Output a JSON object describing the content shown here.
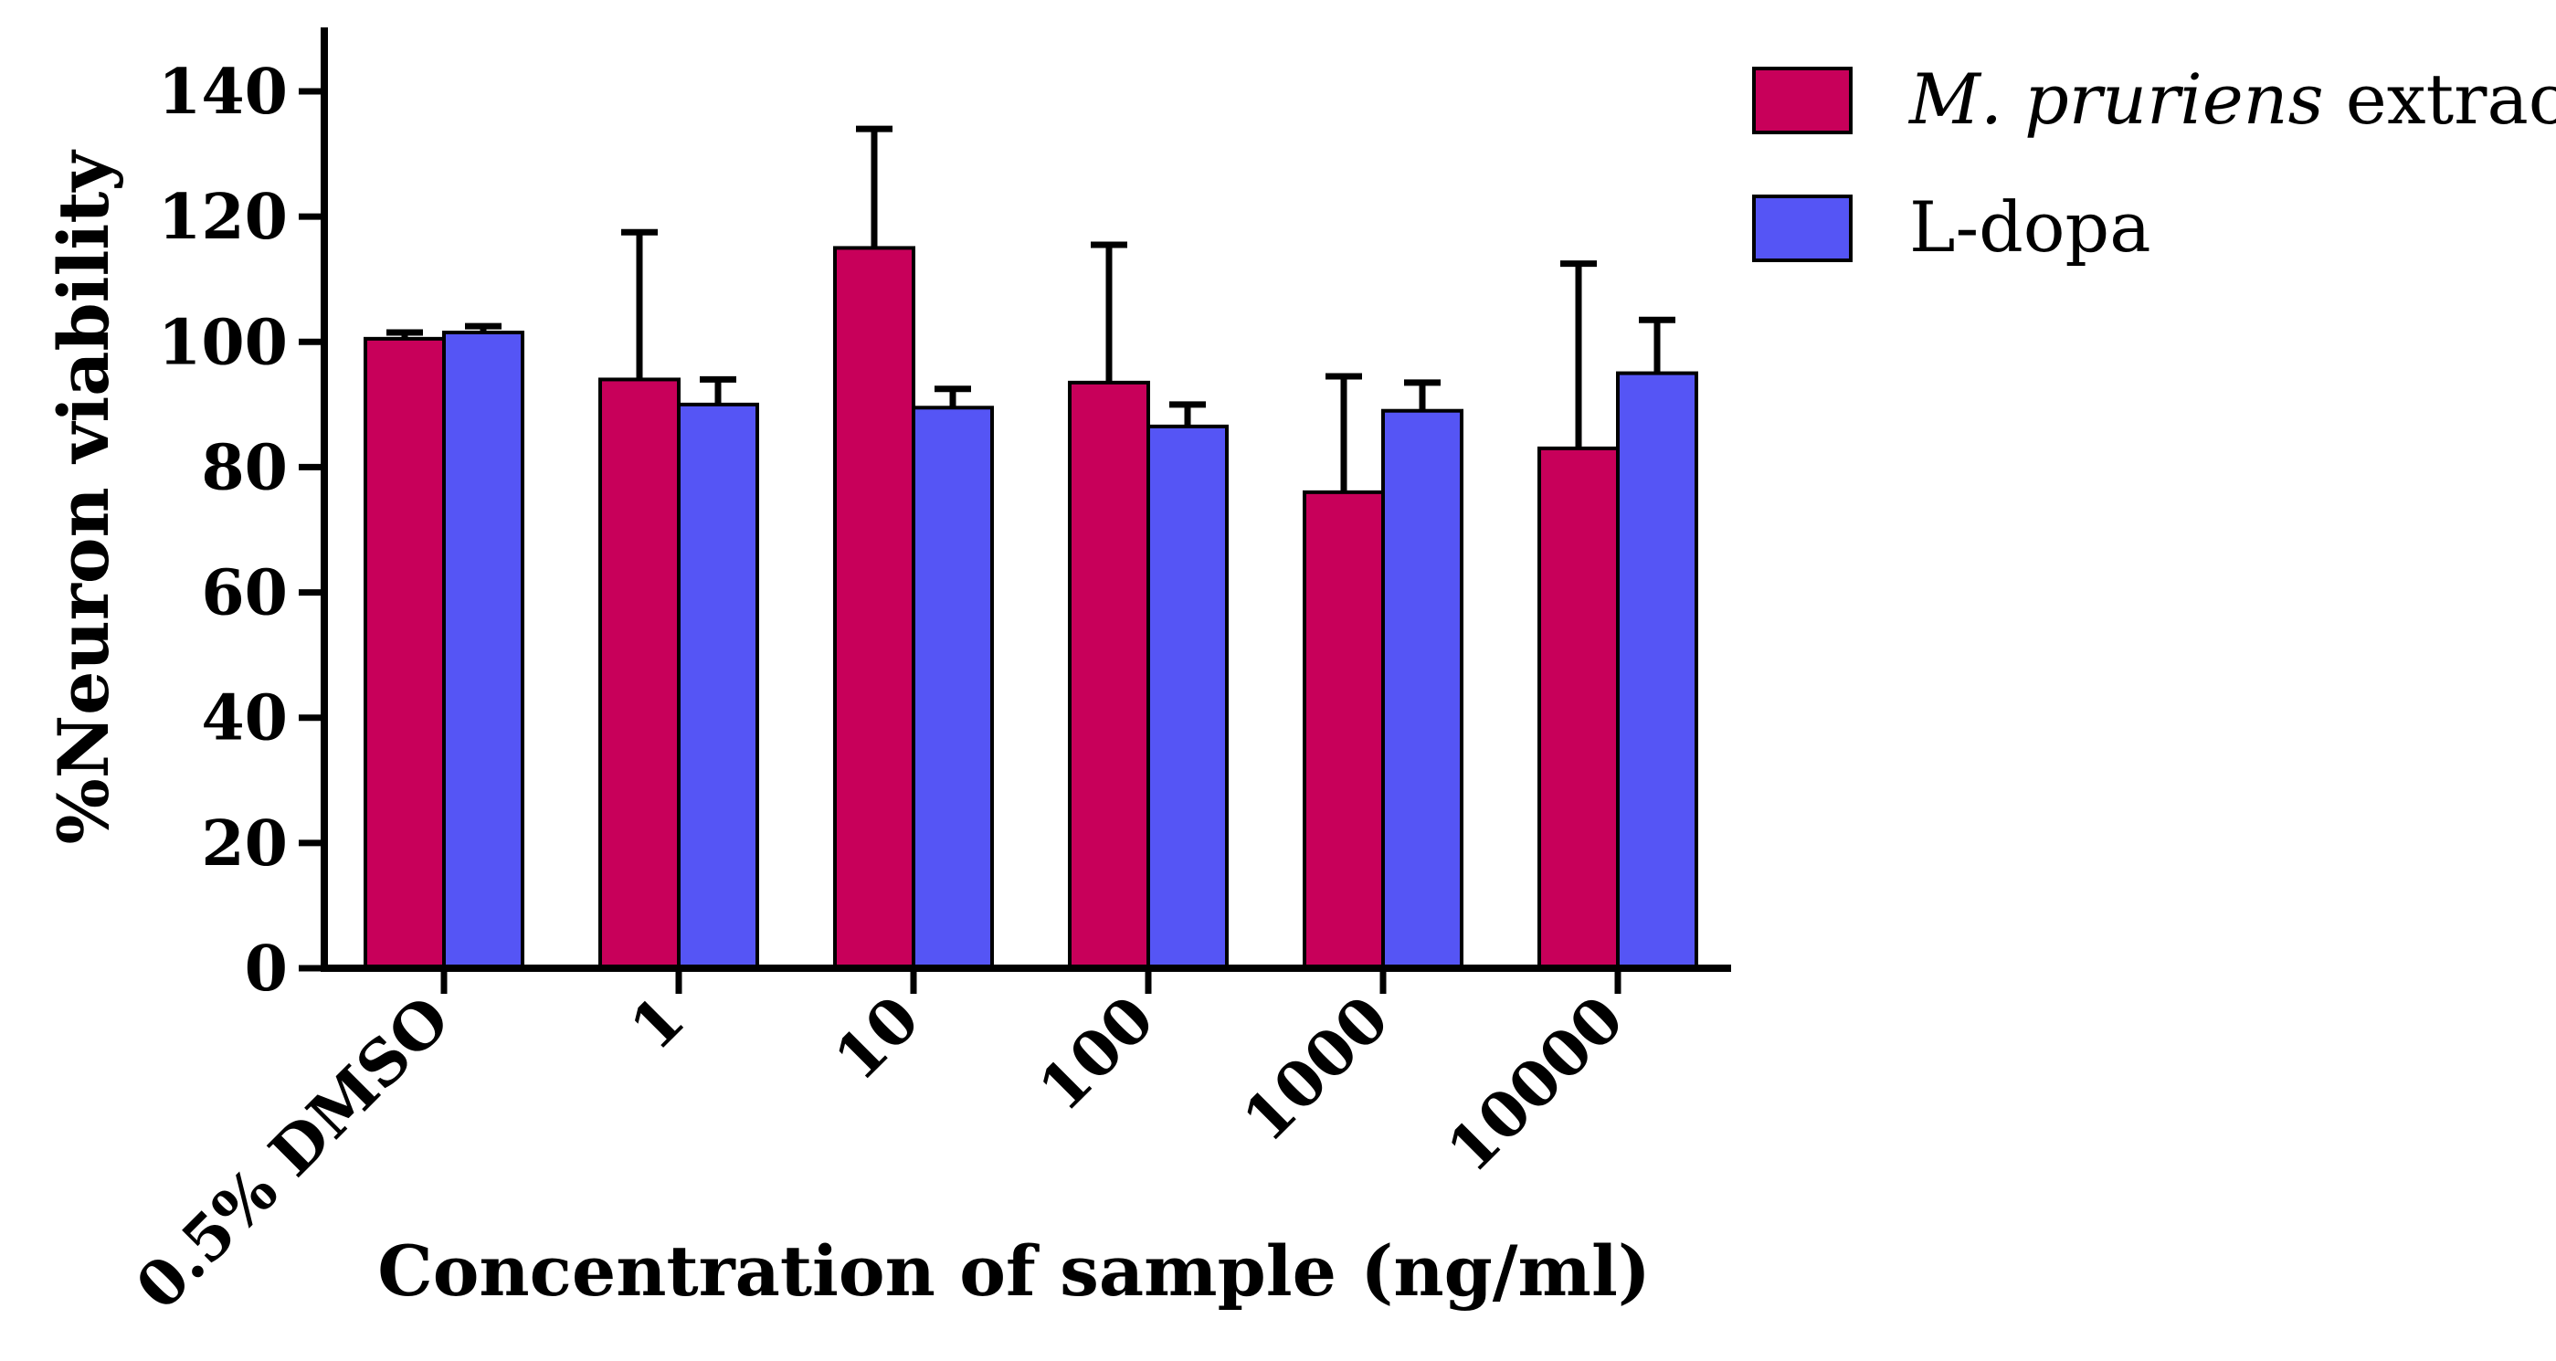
{
  "chart_data": {
    "type": "bar",
    "title": "",
    "xlabel": "Concentration of sample (ng/ml)",
    "ylabel": "%Neuron viability",
    "categories": [
      "0.5% DMSO",
      "1",
      "10",
      "100",
      "1000",
      "10000"
    ],
    "ylim": [
      0,
      150
    ],
    "yticks": [
      0,
      20,
      40,
      60,
      80,
      100,
      120,
      140
    ],
    "series": [
      {
        "name": "M. pruriens extract",
        "name_italic": "M. pruriens",
        "name_rest": " extract",
        "color": "#C8005A",
        "values": [
          100.5,
          94,
          115,
          93.5,
          76,
          83
        ],
        "error_upper": [
          101.5,
          117.5,
          134,
          115.5,
          94.5,
          112.5
        ]
      },
      {
        "name": "L-dopa",
        "color": "#5555F5",
        "values": [
          101.5,
          90,
          89.5,
          86.5,
          89,
          95
        ],
        "error_upper": [
          102.5,
          94,
          92.5,
          90,
          93.5,
          103.5
        ]
      }
    ],
    "legend_position": "top-right",
    "grid": false
  }
}
